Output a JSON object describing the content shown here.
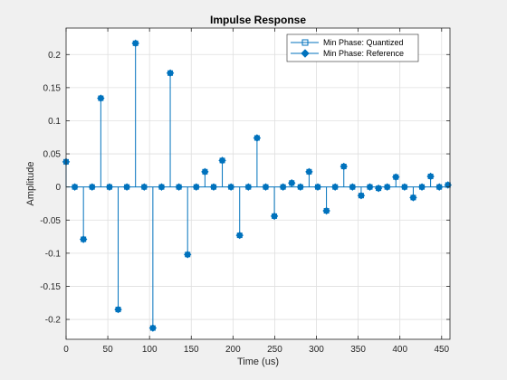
{
  "chart_data": {
    "type": "stem",
    "title": "Impulse Response",
    "xlabel": "Time (us)",
    "ylabel": "Amplitude",
    "xlim": [
      0,
      460
    ],
    "ylim": [
      -0.23,
      0.24
    ],
    "xticks": [
      0,
      50,
      100,
      150,
      200,
      250,
      300,
      350,
      400,
      450
    ],
    "yticks": [
      -0.2,
      -0.15,
      -0.1,
      -0.05,
      0,
      0.05,
      0.1,
      0.15,
      0.2
    ],
    "ytick_labels": [
      "-0.2",
      "-0.15",
      "-0.1",
      "-0.05",
      "0",
      "0.05",
      "0.1",
      "0.15",
      "0.2"
    ],
    "grid": true,
    "legend_position": "top-right",
    "x": [
      0,
      10.4,
      20.8,
      31.2,
      41.6,
      52,
      62.4,
      72.8,
      83.2,
      93.6,
      104,
      114.4,
      124.8,
      135.2,
      145.6,
      156,
      166.4,
      176.8,
      187.2,
      197.6,
      208,
      218.4,
      228.8,
      239.2,
      249.6,
      260,
      270.4,
      280.8,
      291.2,
      301.6,
      312,
      322.4,
      332.8,
      343.2,
      353.6,
      364,
      374.4,
      384.8,
      395.2,
      405.6,
      416,
      426.4,
      436.8,
      447.2,
      457.6
    ],
    "series": [
      {
        "name": "Min Phase: Quantized",
        "color": "#0072bd",
        "marker": "square",
        "values": [
          0.038,
          0,
          -0.079,
          0,
          0.134,
          0,
          -0.185,
          0,
          0.217,
          0,
          -0.213,
          0,
          0.172,
          0,
          -0.102,
          0,
          0.023,
          0,
          0.04,
          0,
          -0.073,
          0,
          0.074,
          0,
          -0.044,
          0,
          0.006,
          0,
          0.023,
          0,
          -0.036,
          0,
          0.031,
          0,
          -0.013,
          0,
          -0.002,
          0,
          0.015,
          0,
          -0.016,
          0,
          0.016,
          0,
          0.003
        ]
      },
      {
        "name": "Min Phase: Reference",
        "color": "#0072bd",
        "marker": "diamond",
        "values": [
          0.038,
          0,
          -0.079,
          0,
          0.134,
          0,
          -0.185,
          0,
          0.217,
          0,
          -0.213,
          0,
          0.172,
          0,
          -0.102,
          0,
          0.023,
          0,
          0.04,
          0,
          -0.073,
          0,
          0.074,
          0,
          -0.044,
          0,
          0.006,
          0,
          0.023,
          0,
          -0.036,
          0,
          0.031,
          0,
          -0.013,
          0,
          -0.002,
          0,
          0.015,
          0,
          -0.016,
          0,
          0.016,
          0,
          0.003
        ]
      }
    ]
  },
  "colors": {
    "figure_background": "#f0f0f0",
    "axes_background": "#ffffff",
    "axis_color": "#262626",
    "grid_color": "#dfdfdf",
    "series_color": "#0072bd"
  }
}
